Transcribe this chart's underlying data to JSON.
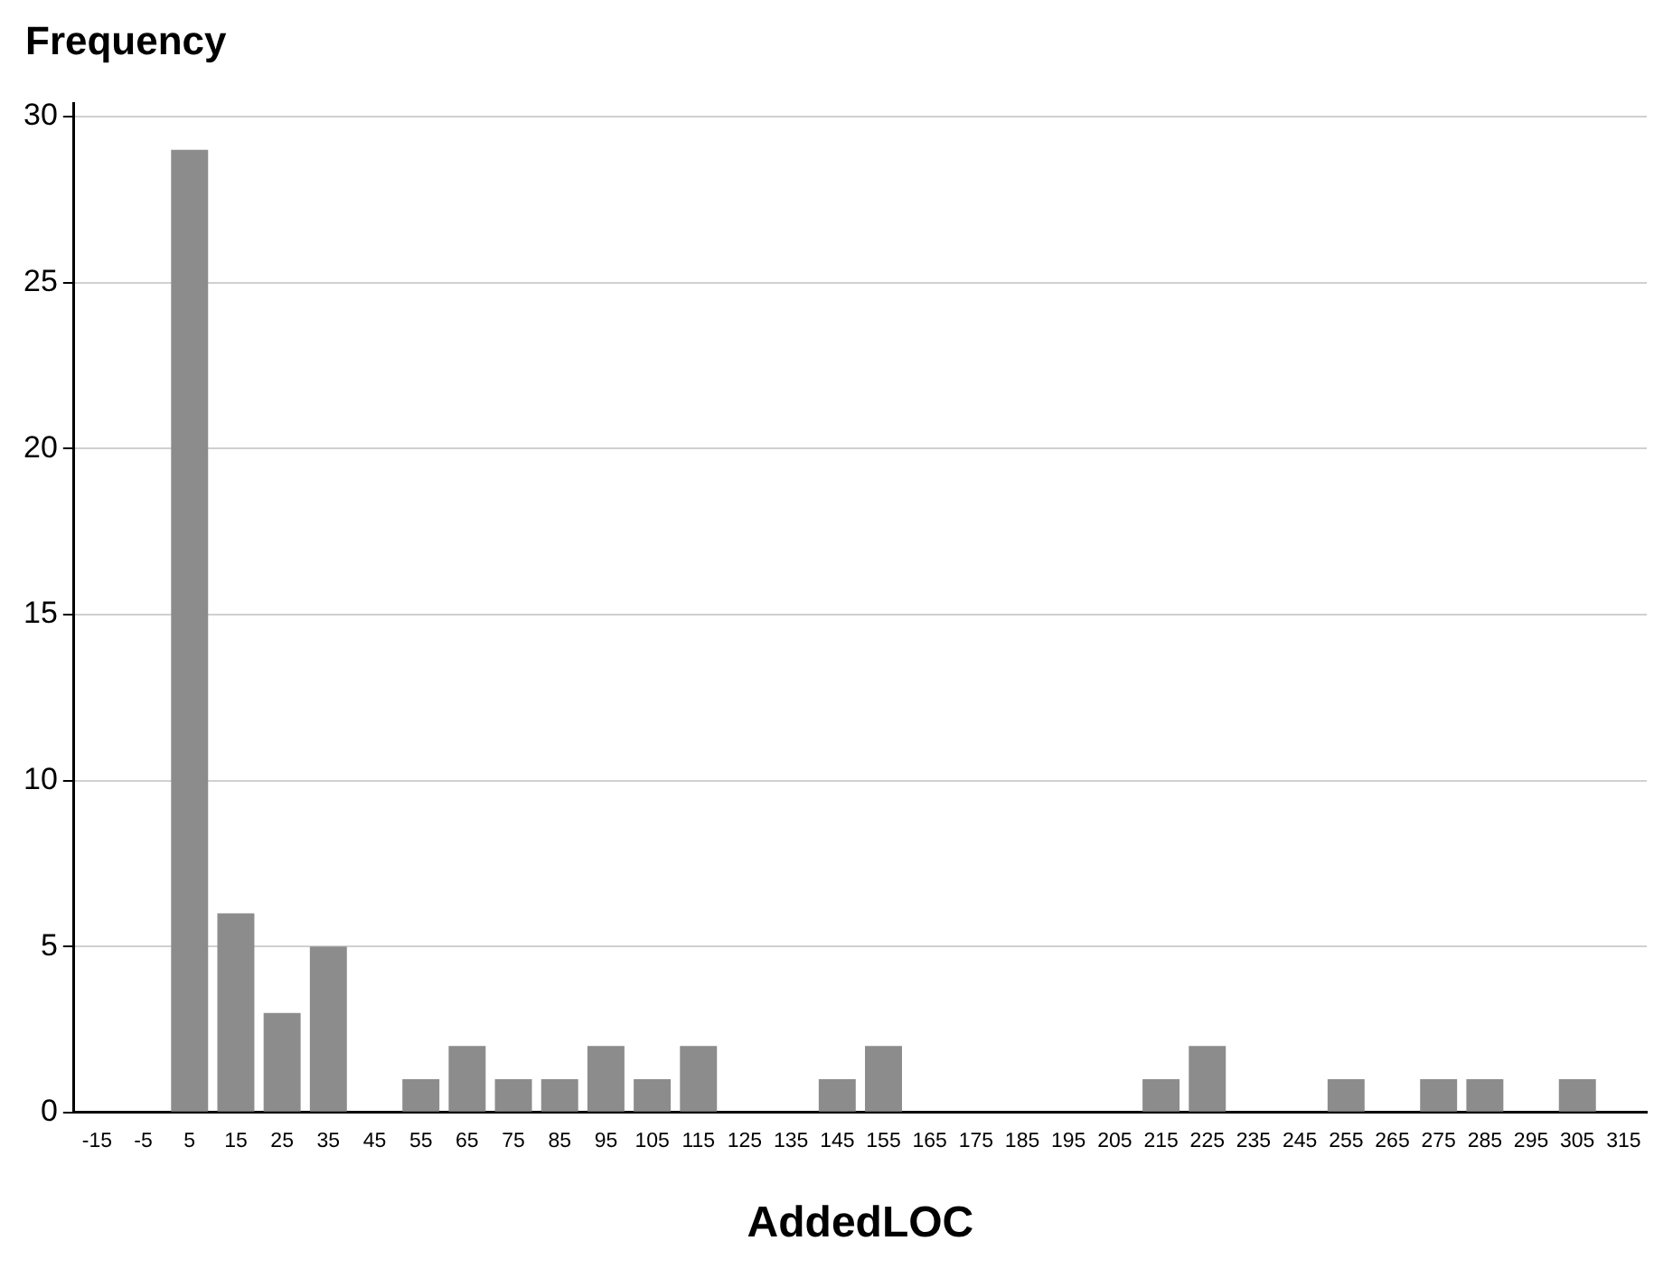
{
  "chart_data": {
    "type": "histogram",
    "xlabel": "AddedLOC",
    "ylabel": "Frequency",
    "bins": [
      0,
      10,
      20,
      30,
      40,
      50,
      60,
      70,
      80,
      90,
      100,
      110,
      120,
      130,
      140,
      150,
      160,
      170,
      180,
      190,
      200,
      210,
      220,
      230,
      240,
      250,
      260,
      270,
      280,
      290,
      300,
      310
    ],
    "values": [
      29,
      6,
      3,
      5,
      0,
      1,
      2,
      1,
      1,
      2,
      1,
      2,
      0,
      0,
      1,
      2,
      0,
      0,
      0,
      0,
      0,
      1,
      2,
      0,
      0,
      1,
      0,
      1,
      1,
      0,
      1
    ],
    "color": "#8c8c8c",
    "xlim": [
      -20,
      320
    ],
    "xticks": [
      -15,
      -5,
      5,
      15,
      25,
      35,
      45,
      55,
      65,
      75,
      85,
      95,
      105,
      115,
      125,
      135,
      145,
      155,
      165,
      175,
      185,
      195,
      205,
      215,
      225,
      235,
      245,
      255,
      265,
      275,
      285,
      295,
      305,
      315
    ],
    "ylim": [
      0,
      30.4
    ],
    "yticks": [
      0,
      5,
      10,
      15,
      20,
      25,
      30
    ],
    "grid": "y",
    "legend": false
  }
}
